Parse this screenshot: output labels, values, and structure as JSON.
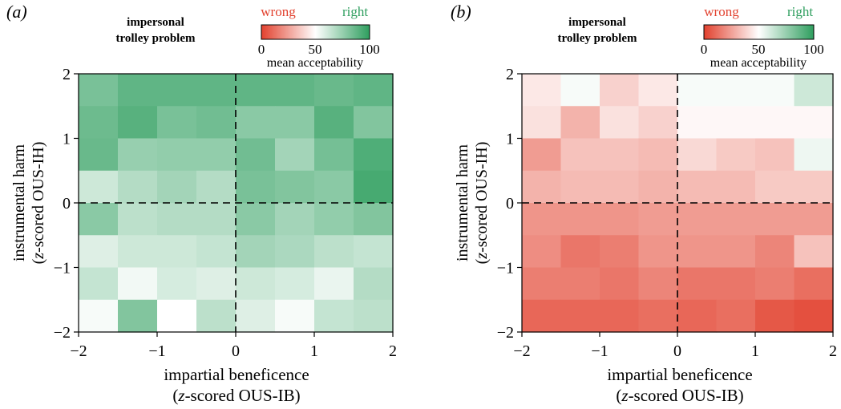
{
  "chart_data": [
    {
      "type": "heatmap",
      "panel_label": "(a)",
      "title_lines": [
        "impersonal",
        "trolley problem"
      ],
      "xlabel_line1": "impartial beneficence",
      "xlabel_line2_italic": "z",
      "xlabel_line2_rest": "-scored OUS-IB)",
      "ylabel_line1": "instrumental harm",
      "ylabel_line2_italic": "z",
      "ylabel_line2_rest": "-scored OUS-IH)",
      "xlim": [
        -2,
        2
      ],
      "ylim": [
        -2,
        2
      ],
      "xticks": [
        "−2",
        "−1",
        "0",
        "1",
        "2"
      ],
      "yticks": [
        "2",
        "1",
        "0",
        "−1",
        "−2"
      ],
      "colorbar": {
        "left_word": "wrong",
        "right_word": "right",
        "ticks": [
          "0",
          "50",
          "100"
        ],
        "label": "mean acceptability",
        "low_color": "#e2412e",
        "mid_color": "#ffffff",
        "high_color": "#2e9e5e",
        "range": [
          0,
          100
        ]
      },
      "reference_lines": {
        "x": 0,
        "y": 0
      },
      "grid_rows_top_to_bottom": [
        [
          82,
          88,
          88,
          88,
          88,
          88,
          86,
          88
        ],
        [
          85,
          90,
          82,
          84,
          78,
          78,
          90,
          80
        ],
        [
          86,
          75,
          76,
          76,
          84,
          72,
          83,
          92
        ],
        [
          62,
          68,
          72,
          68,
          82,
          80,
          78,
          94
        ],
        [
          78,
          66,
          68,
          68,
          78,
          72,
          76,
          80
        ],
        [
          58,
          62,
          62,
          64,
          72,
          70,
          66,
          64
        ],
        [
          64,
          53,
          60,
          58,
          62,
          60,
          55,
          68
        ],
        [
          52,
          80,
          50,
          66,
          58,
          52,
          64,
          66
        ]
      ]
    },
    {
      "type": "heatmap",
      "panel_label": "(b)",
      "title_lines": [
        "impersonal",
        "trolley problem"
      ],
      "xlabel_line1": "impartial beneficence",
      "xlabel_line2_italic": "z",
      "xlabel_line2_rest": "-scored OUS-IB)",
      "ylabel_line1": "instrumental harm",
      "ylabel_line2_italic": "z",
      "ylabel_line2_rest": "-scored OUS-IH)",
      "xlim": [
        -2,
        2
      ],
      "ylim": [
        -2,
        2
      ],
      "xticks": [
        "−2",
        "−1",
        "0",
        "1",
        "2"
      ],
      "yticks": [
        "2",
        "1",
        "0",
        "−1",
        "−2"
      ],
      "colorbar": {
        "left_word": "wrong",
        "right_word": "right",
        "ticks": [
          "0",
          "50",
          "100"
        ],
        "label": "mean acceptability",
        "low_color": "#e2412e",
        "mid_color": "#ffffff",
        "high_color": "#2e9e5e",
        "range": [
          0,
          100
        ]
      },
      "reference_lines": {
        "x": 0,
        "y": 0
      },
      "grid_rows_top_to_bottom": [
        [
          44,
          52,
          38,
          44,
          52,
          52,
          52,
          62
        ],
        [
          42,
          30,
          42,
          38,
          48,
          48,
          48,
          48
        ],
        [
          24,
          34,
          34,
          32,
          40,
          36,
          34,
          54
        ],
        [
          30,
          32,
          32,
          30,
          32,
          32,
          36,
          36
        ],
        [
          22,
          22,
          22,
          24,
          24,
          24,
          24,
          24
        ],
        [
          20,
          14,
          16,
          22,
          22,
          22,
          18,
          34
        ],
        [
          16,
          16,
          14,
          18,
          14,
          14,
          16,
          12
        ],
        [
          10,
          10,
          10,
          12,
          10,
          12,
          6,
          4
        ]
      ]
    }
  ]
}
